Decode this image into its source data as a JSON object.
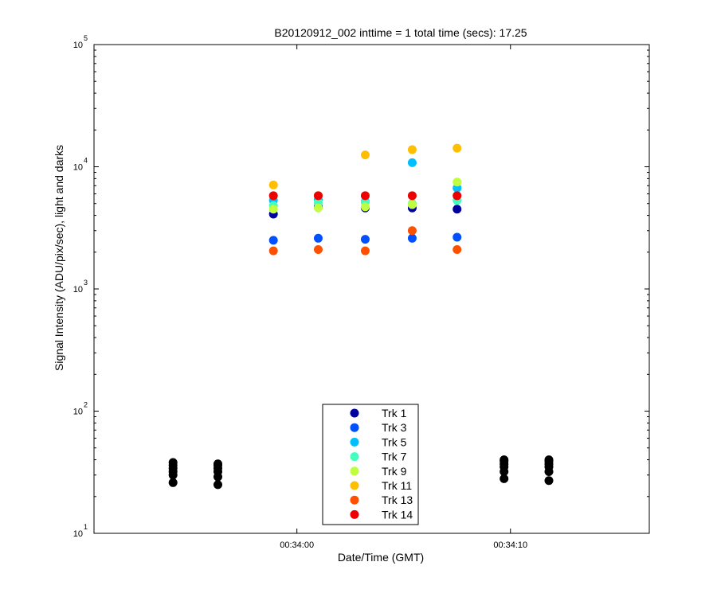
{
  "chart_data": {
    "type": "scatter",
    "title": "B20120912_002 inttime = 1 total time (secs): 17.25",
    "xlabel": "Date/Time (GMT)",
    "ylabel": "Signal Intensity (ADU/pix/sec), light and darks",
    "y_scale": "log",
    "ylim": [
      10,
      100000
    ],
    "xlim": [
      "00:33:50.5",
      "00:34:16.5"
    ],
    "x_ticks": [
      {
        "value": "00:34:00",
        "label": "00:34:00"
      },
      {
        "value": "00:34:10",
        "label": "00:34:10"
      }
    ],
    "y_ticks": [
      {
        "value": 10,
        "base": "10",
        "exp": "1"
      },
      {
        "value": 100,
        "base": "10",
        "exp": "2"
      },
      {
        "value": 1000,
        "base": "10",
        "exp": "3"
      },
      {
        "value": 10000,
        "base": "10",
        "exp": "4"
      },
      {
        "value": 100000,
        "base": "10",
        "exp": "5"
      }
    ],
    "grid": false,
    "legend_position": "bottom-center",
    "x": [
      "00:33:58.9",
      "00:34:01.0",
      "00:34:03.2",
      "00:34:05.4",
      "00:34:07.5"
    ],
    "series": [
      {
        "name": "Trk 1",
        "color": "#00009F",
        "values": [
          4100,
          4700,
          4600,
          4600,
          4500
        ]
      },
      {
        "name": "Trk 3",
        "color": "#0050FF",
        "values": [
          2500,
          2600,
          2550,
          2600,
          2650
        ]
      },
      {
        "name": "Trk 5",
        "color": "#00BFFF",
        "values": [
          5300,
          5400,
          5200,
          10800,
          6700
        ]
      },
      {
        "name": "Trk 7",
        "color": "#40FFBF",
        "values": [
          4800,
          5100,
          5100,
          5000,
          5300
        ]
      },
      {
        "name": "Trk 9",
        "color": "#BFFF40",
        "values": [
          4500,
          4600,
          4700,
          4900,
          7500
        ]
      },
      {
        "name": "Trk 11",
        "color": "#FFBF00",
        "values": [
          7100,
          5800,
          12500,
          13800,
          14200
        ]
      },
      {
        "name": "Trk 13",
        "color": "#FF5000",
        "values": [
          2050,
          2100,
          2050,
          3000,
          2100
        ]
      },
      {
        "name": "Trk 14",
        "color": "#EF0000",
        "values": [
          5800,
          5800,
          5800,
          5800,
          5800
        ]
      }
    ],
    "darks": {
      "color": "#000000",
      "x": [
        "00:33:54.2",
        "00:33:56.3",
        "00:34:09.7",
        "00:34:11.8"
      ],
      "values": [
        [
          26,
          30,
          32,
          34,
          36,
          38
        ],
        [
          25,
          29,
          32,
          34,
          36,
          37
        ],
        [
          28,
          32,
          35,
          37,
          39,
          40
        ],
        [
          27,
          32,
          35,
          37,
          39,
          40
        ]
      ]
    }
  }
}
